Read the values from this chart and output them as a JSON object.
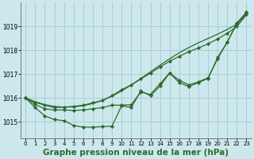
{
  "bg_color": "#cce8ec",
  "grid_color": "#aacdd4",
  "line_color": "#2d6a2d",
  "xlabel": "Graphe pression niveau de la mer (hPa)",
  "yticks": [
    1015,
    1016,
    1017,
    1018,
    1019
  ],
  "xticks": [
    0,
    1,
    2,
    3,
    4,
    5,
    6,
    7,
    8,
    9,
    10,
    11,
    12,
    13,
    14,
    15,
    16,
    17,
    18,
    19,
    20,
    21,
    22,
    23
  ],
  "ylim": [
    1014.3,
    1020.0
  ],
  "xlim": [
    -0.5,
    23.5
  ],
  "series_smooth": [
    1016.0,
    1015.85,
    1015.72,
    1015.65,
    1015.62,
    1015.63,
    1015.68,
    1015.77,
    1015.9,
    1016.08,
    1016.3,
    1016.55,
    1016.82,
    1017.1,
    1017.38,
    1017.65,
    1017.9,
    1018.12,
    1018.32,
    1018.5,
    1018.68,
    1018.88,
    1019.1,
    1019.55
  ],
  "series_upper_marker": [
    1016.0,
    1015.82,
    1015.7,
    1015.6,
    1015.62,
    1015.65,
    1015.7,
    1015.8,
    1015.9,
    1016.1,
    1016.35,
    1016.55,
    1016.8,
    1017.05,
    1017.3,
    1017.55,
    1017.75,
    1017.95,
    1018.1,
    1018.28,
    1018.48,
    1018.72,
    1019.0,
    1019.5
  ],
  "series_mid_marker": [
    1016.0,
    1015.73,
    1015.55,
    1015.5,
    1015.5,
    1015.48,
    1015.5,
    1015.55,
    1015.6,
    1015.7,
    1015.7,
    1015.72,
    1016.25,
    1016.15,
    1016.6,
    1017.05,
    1016.75,
    1016.55,
    1016.68,
    1016.85,
    1017.65,
    1018.35,
    1019.15,
    1019.6
  ],
  "series_low_marker": [
    1016.0,
    1015.6,
    1015.25,
    1015.1,
    1015.05,
    1014.85,
    1014.78,
    1014.78,
    1014.8,
    1014.82,
    1015.68,
    1015.6,
    1016.3,
    1016.1,
    1016.5,
    1017.05,
    1016.65,
    1016.48,
    1016.65,
    1016.82,
    1017.7,
    1018.35,
    1019.12,
    1019.58
  ]
}
